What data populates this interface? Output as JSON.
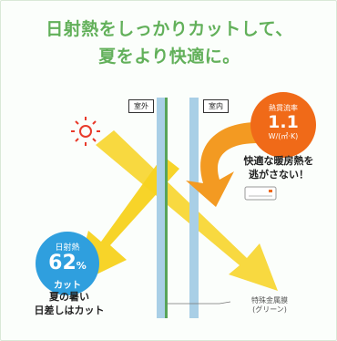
{
  "title": {
    "line1": "日射熱をしっかりカットして、",
    "line2": "夏をより快適に。"
  },
  "labels": {
    "outdoor": "室外",
    "indoor": "室内"
  },
  "heat_transmission": {
    "label": "熱貫流率",
    "value": "1.1",
    "unit": "W/(㎡·K)"
  },
  "solar_cut": {
    "label": "日射熱",
    "value": "62",
    "percent_sign": "%",
    "suffix": "カット"
  },
  "notes": {
    "right_line1": "快適な暖房熱を",
    "right_line2": "逃がさない！",
    "left_line1": "夏の暑い",
    "left_line2": "日差しはカット"
  },
  "film": {
    "line1": "特殊金属膜",
    "line2": "(グリーン)"
  },
  "colors": {
    "title_green": "#62b05a",
    "sun_red": "#e83a2a",
    "arrow_yellow": "#f7d21e",
    "heat_orange": "#f06a18",
    "badge_blue": "#2f9fde",
    "glass_blue": "#a9cfe6",
    "film_green": "#58a458"
  },
  "icons": [
    "sun-icon",
    "air-conditioner-icon"
  ]
}
